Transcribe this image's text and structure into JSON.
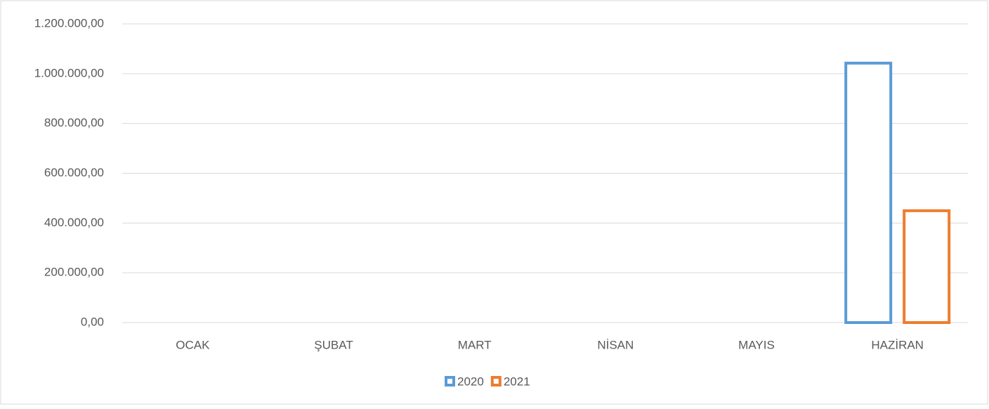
{
  "chart_data": {
    "type": "bar",
    "categories": [
      "OCAK",
      "ŞUBAT",
      "MART",
      "NİSAN",
      "MAYIS",
      "HAZİRAN"
    ],
    "series": [
      {
        "name": "2020",
        "color": "#5b9bd5",
        "values": [
          null,
          null,
          null,
          null,
          null,
          1048000
        ]
      },
      {
        "name": "2021",
        "color": "#ed7d31",
        "values": [
          null,
          null,
          null,
          null,
          null,
          455000
        ]
      }
    ],
    "ylim": [
      0,
      1200000
    ],
    "yticks": [
      {
        "value": 0,
        "label": "0,00"
      },
      {
        "value": 200000,
        "label": "200.000,00"
      },
      {
        "value": 400000,
        "label": "400.000,00"
      },
      {
        "value": 600000,
        "label": "600.000,00"
      },
      {
        "value": 800000,
        "label": "800.000,00"
      },
      {
        "value": 1000000,
        "label": "1.000.000,00"
      },
      {
        "value": 1200000,
        "label": "1.200.000,00"
      }
    ],
    "grid": true,
    "legend": "bottom"
  }
}
